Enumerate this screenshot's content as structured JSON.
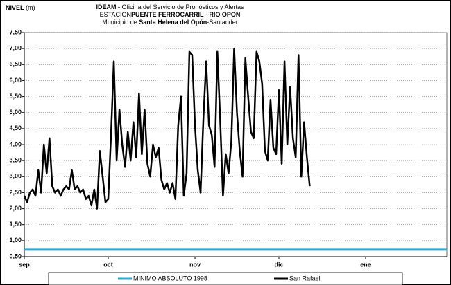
{
  "chart_data": {
    "type": "line",
    "ylabel": "NIVEL",
    "yunit": "(m)",
    "title_lines": [
      [
        {
          "text": "IDEAM -",
          "bold": true
        },
        {
          "text": " Oficina del Servicio de Pronósticos y Alertas",
          "bold": false
        }
      ],
      [
        {
          "text": "ESTACION",
          "bold": false
        },
        {
          "text": "PUENTE FERROCARRIL - RIO OPON",
          "bold": true
        }
      ],
      [
        {
          "text": "Municipio de ",
          "bold": false
        },
        {
          "text": "Santa Helena del Opón",
          "bold": true
        },
        {
          "text": "-Santander",
          "bold": false
        }
      ]
    ],
    "categories": [
      "sep",
      null,
      null,
      null,
      null,
      null,
      null,
      null,
      null,
      null,
      null,
      null,
      null,
      null,
      null,
      null,
      null,
      null,
      null,
      null,
      null,
      null,
      null,
      null,
      null,
      null,
      null,
      null,
      null,
      null,
      "oct",
      null,
      null,
      null,
      null,
      null,
      null,
      null,
      null,
      null,
      null,
      null,
      null,
      null,
      null,
      null,
      null,
      null,
      null,
      null,
      null,
      null,
      null,
      null,
      null,
      null,
      null,
      null,
      null,
      null,
      null,
      "nov",
      null,
      null,
      null,
      null,
      null,
      null,
      null,
      null,
      null,
      null,
      null,
      null,
      null,
      null,
      null,
      null,
      null,
      null,
      null,
      null,
      null,
      null,
      null,
      null,
      null,
      null,
      null,
      null,
      null,
      "dic",
      null,
      null,
      null,
      null,
      null,
      null,
      null,
      null,
      null,
      null,
      null,
      null,
      null,
      null,
      null,
      null,
      null,
      null,
      null,
      null,
      null,
      null,
      null,
      null,
      null,
      null,
      null,
      null,
      null,
      null,
      "ene",
      null,
      null,
      null,
      null,
      null,
      null,
      null,
      null,
      null,
      null,
      null,
      null,
      null,
      null,
      null,
      null,
      null,
      null,
      null,
      null,
      null,
      null,
      null,
      null,
      null,
      null,
      null,
      null,
      null
    ],
    "series": [
      {
        "name": "MINIMO ABSOLUTO 1998",
        "color": "#29abd4",
        "width": 3,
        "values": [
          0.72,
          0.72,
          0.72,
          0.72,
          0.72,
          0.72,
          0.72,
          0.72,
          0.72,
          0.72,
          0.72,
          0.72,
          0.72,
          0.72,
          0.72,
          0.72,
          0.72,
          0.72,
          0.72,
          0.72,
          0.72,
          0.72,
          0.72,
          0.72,
          0.72,
          0.72,
          0.72,
          0.72,
          0.72,
          0.72,
          0.72,
          0.72,
          0.72,
          0.72,
          0.72,
          0.72,
          0.72,
          0.72,
          0.72,
          0.72,
          0.72,
          0.72,
          0.72,
          0.72,
          0.72,
          0.72,
          0.72,
          0.72,
          0.72,
          0.72,
          0.72,
          0.72,
          0.72,
          0.72,
          0.72,
          0.72,
          0.72,
          0.72,
          0.72,
          0.72,
          0.72,
          0.72,
          0.72,
          0.72,
          0.72,
          0.72,
          0.72,
          0.72,
          0.72,
          0.72,
          0.72,
          0.72,
          0.72,
          0.72,
          0.72,
          0.72,
          0.72,
          0.72,
          0.72,
          0.72,
          0.72,
          0.72,
          0.72,
          0.72,
          0.72,
          0.72,
          0.72,
          0.72,
          0.72,
          0.72,
          0.72,
          0.72,
          0.72,
          0.72,
          0.72,
          0.72,
          0.72,
          0.72,
          0.72,
          0.72,
          0.72,
          0.72,
          0.72,
          0.72,
          0.72,
          0.72,
          0.72,
          0.72,
          0.72,
          0.72,
          0.72,
          0.72,
          0.72,
          0.72,
          0.72,
          0.72,
          0.72,
          0.72,
          0.72,
          0.72,
          0.72,
          0.72,
          0.72,
          0.72,
          0.72,
          0.72,
          0.72,
          0.72,
          0.72,
          0.72,
          0.72,
          0.72,
          0.72,
          0.72,
          0.72,
          0.72,
          0.72,
          0.72,
          0.72,
          0.72,
          0.72,
          0.72,
          0.72,
          0.72,
          0.72,
          0.72,
          0.72,
          0.72,
          0.72,
          0.72,
          0.72,
          0.72
        ]
      },
      {
        "name": "San Rafael",
        "color": "#000000",
        "width": 2.5,
        "values": [
          2.4,
          2.2,
          2.5,
          2.6,
          2.4,
          3.2,
          2.5,
          4.0,
          3.1,
          4.2,
          2.7,
          2.5,
          2.6,
          2.4,
          2.6,
          2.7,
          2.6,
          3.2,
          2.6,
          2.7,
          2.5,
          2.6,
          2.3,
          2.4,
          2.1,
          2.6,
          2.0,
          3.8,
          3.0,
          2.2,
          2.3,
          4.3,
          6.6,
          3.5,
          5.1,
          4.0,
          3.3,
          4.4,
          3.5,
          4.7,
          3.6,
          5.6,
          3.7,
          5.1,
          3.4,
          3.0,
          4.0,
          3.6,
          3.9,
          2.9,
          2.6,
          2.8,
          2.5,
          2.8,
          2.3,
          4.6,
          5.5,
          2.4,
          3.1,
          6.9,
          6.8,
          4.6,
          3.2,
          2.5,
          4.8,
          6.6,
          4.6,
          4.3,
          3.3,
          6.9,
          4.8,
          2.4,
          3.7,
          3.1,
          4.1,
          7.0,
          5.0,
          3.8,
          3.0,
          6.7,
          5.5,
          4.4,
          4.2,
          6.9,
          6.6,
          5.9,
          3.8,
          3.5,
          5.4,
          3.9,
          3.7,
          5.7,
          3.4,
          6.6,
          4.0,
          5.8,
          4.2,
          3.6,
          6.8,
          3.0,
          4.7,
          3.6,
          2.7,
          null,
          null,
          null,
          null,
          null,
          null,
          null,
          null,
          null,
          null,
          null,
          null,
          null,
          null,
          null,
          null,
          null,
          null,
          null,
          null,
          null,
          null,
          null,
          null,
          null,
          null,
          null,
          null,
          null,
          null,
          null,
          null,
          null,
          null,
          null,
          null,
          null,
          null,
          null,
          null,
          null,
          null,
          null,
          null,
          null,
          null,
          null,
          null,
          null
        ]
      }
    ],
    "ylim": [
      0.5,
      7.5
    ],
    "yticks": [
      {
        "value": 0.5,
        "label": "0,50"
      },
      {
        "value": 1.0,
        "label": "1,00"
      },
      {
        "value": 1.5,
        "label": "1,50"
      },
      {
        "value": 2.0,
        "label": "2,00"
      },
      {
        "value": 2.5,
        "label": "2,50"
      },
      {
        "value": 3.0,
        "label": "3,00"
      },
      {
        "value": 3.5,
        "label": "3,50"
      },
      {
        "value": 4.0,
        "label": "4,00"
      },
      {
        "value": 4.5,
        "label": "4,50"
      },
      {
        "value": 5.0,
        "label": "5,00"
      },
      {
        "value": 5.5,
        "label": "5,50"
      },
      {
        "value": 6.0,
        "label": "6,00"
      },
      {
        "value": 6.5,
        "label": "6,50"
      },
      {
        "value": 7.0,
        "label": "7,00"
      },
      {
        "value": 7.5,
        "label": "7,50"
      }
    ],
    "grid": true
  }
}
